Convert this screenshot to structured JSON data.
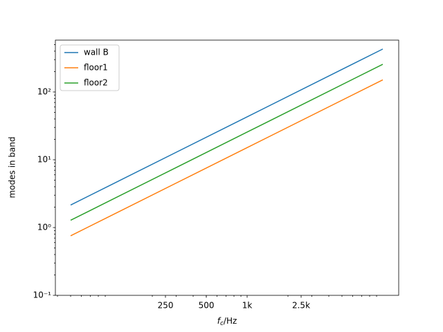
{
  "chart_data": {
    "type": "line",
    "xlabel": "fc/Hz",
    "ylabel": "modes in band",
    "x": [
      50,
      100,
      1000,
      10000
    ],
    "series": [
      {
        "name": "wall B",
        "color": "#1f77b4",
        "values": [
          2.15,
          4.3,
          43,
          430
        ]
      },
      {
        "name": "floor1",
        "color": "#ff7f0e",
        "values": [
          0.755,
          1.51,
          15.1,
          151
        ]
      },
      {
        "name": "floor2",
        "color": "#2ca02c",
        "values": [
          1.28,
          2.56,
          25.6,
          256
        ]
      }
    ],
    "xscale": "log",
    "yscale": "log",
    "xlim": [
      38.6,
      13100
    ],
    "ylim": [
      0.1,
      582
    ],
    "xticks": [
      250,
      500,
      {
        "value": 1000,
        "label": "1k"
      },
      {
        "value": 2500,
        "label": "2.5k"
      }
    ],
    "yticks": [
      {
        "value": 0.1,
        "label": "10⁻¹"
      },
      {
        "value": 1,
        "label": "10⁰"
      },
      {
        "value": 10,
        "label": "10¹"
      },
      {
        "value": 100,
        "label": "10²"
      }
    ],
    "legend": "upper-left",
    "grid": false
  }
}
